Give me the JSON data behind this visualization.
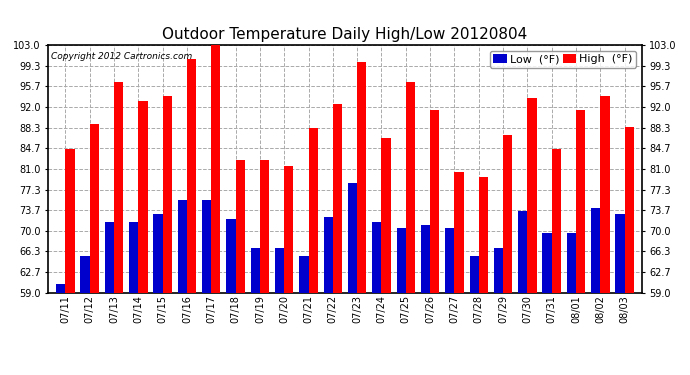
{
  "title": "Outdoor Temperature Daily High/Low 20120804",
  "copyright": "Copyright 2012 Cartronics.com",
  "legend_low": "Low  (°F)",
  "legend_high": "High  (°F)",
  "dates": [
    "07/11",
    "07/12",
    "07/13",
    "07/14",
    "07/15",
    "07/16",
    "07/17",
    "07/18",
    "07/19",
    "07/20",
    "07/21",
    "07/22",
    "07/23",
    "07/24",
    "07/25",
    "07/26",
    "07/27",
    "07/28",
    "07/29",
    "07/30",
    "07/31",
    "08/01",
    "08/02",
    "08/03"
  ],
  "high": [
    84.5,
    89.0,
    96.5,
    93.0,
    94.0,
    100.5,
    103.0,
    82.5,
    82.5,
    81.5,
    88.3,
    92.5,
    100.0,
    86.5,
    96.5,
    91.5,
    80.5,
    79.5,
    87.0,
    93.5,
    84.5,
    91.5,
    94.0,
    88.5
  ],
  "low": [
    60.5,
    65.5,
    71.5,
    71.5,
    73.0,
    75.5,
    75.5,
    72.0,
    67.0,
    67.0,
    65.5,
    72.5,
    78.5,
    71.5,
    70.5,
    71.0,
    70.5,
    65.5,
    67.0,
    73.5,
    69.5,
    69.5,
    74.0,
    73.0
  ],
  "ylim": [
    59.0,
    103.0
  ],
  "yticks": [
    59.0,
    62.7,
    66.3,
    70.0,
    73.7,
    77.3,
    81.0,
    84.7,
    88.3,
    92.0,
    95.7,
    99.3,
    103.0
  ],
  "bar_width": 0.38,
  "high_color": "#ff0000",
  "low_color": "#0000cc",
  "bg_color": "#ffffff",
  "plot_bg_color": "#ffffff",
  "grid_color": "#aaaaaa",
  "title_fontsize": 11,
  "tick_fontsize": 7,
  "legend_fontsize": 8
}
